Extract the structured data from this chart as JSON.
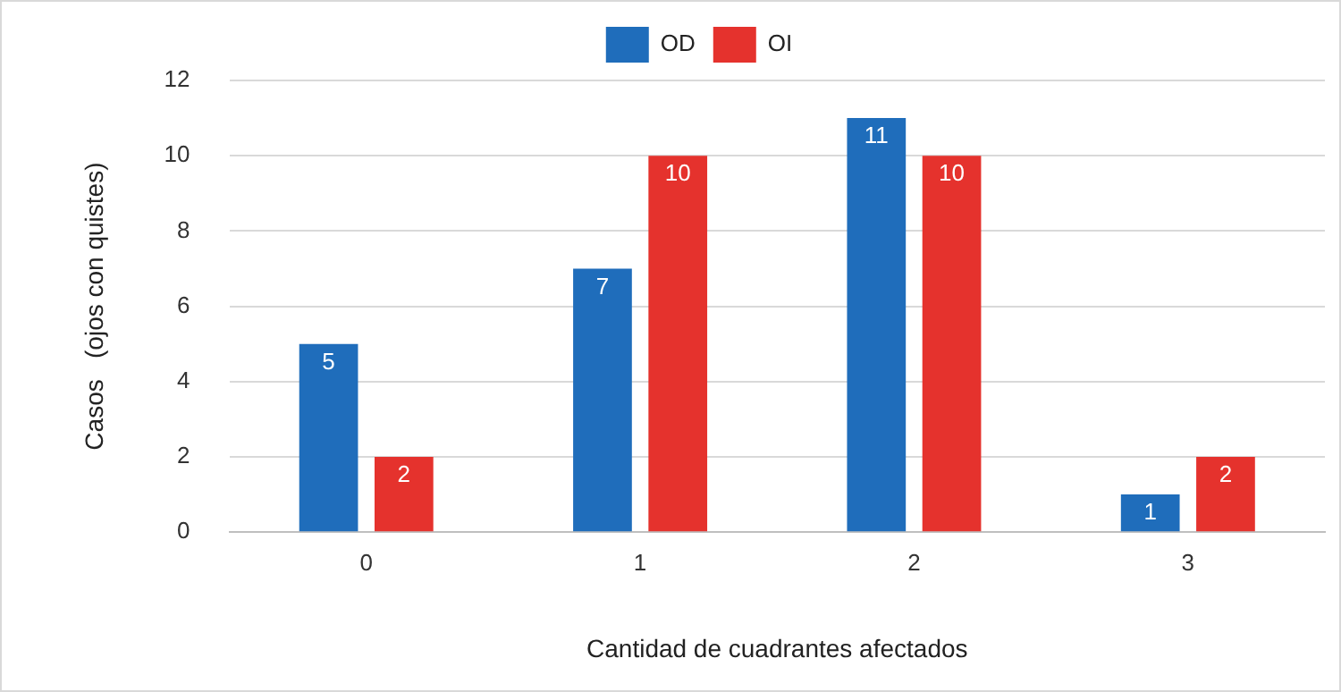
{
  "chart_data": {
    "type": "bar",
    "xlabel": "Cantidad de cuadrantes afectados",
    "ylabel": "Casos   (ojos con quistes)",
    "categories": [
      "0",
      "1",
      "2",
      "3"
    ],
    "series": [
      {
        "name": "OD",
        "color": "#1f6dbb",
        "values": [
          5,
          7,
          11,
          1
        ]
      },
      {
        "name": "OI",
        "color": "#e5322d",
        "values": [
          2,
          10,
          10,
          2
        ]
      }
    ],
    "ylim": [
      0,
      12
    ],
    "yticks": [
      0,
      2,
      4,
      6,
      8,
      10,
      12
    ],
    "grid": "y",
    "legend": "top",
    "data_labels": true
  }
}
